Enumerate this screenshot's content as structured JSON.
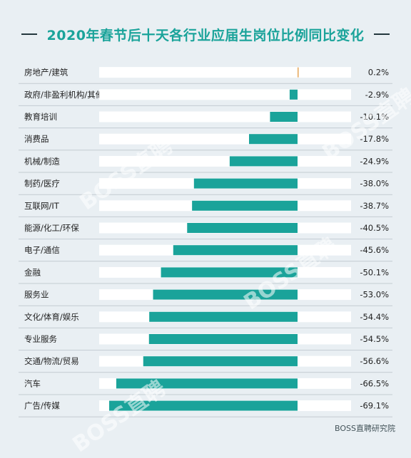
{
  "title": "2020年春节后十天各行业应届生岗位比例同比变化",
  "source": "BOSS直聘研究院",
  "watermark": "BOSS直聘",
  "colors": {
    "background": "#e9eff3",
    "bar": "#1aa39a",
    "bar_positive": "#e6a555",
    "track": "#ffffff",
    "title": "#1aa39a",
    "text": "#222222"
  },
  "chart_data": {
    "type": "bar",
    "orientation": "horizontal",
    "title": "2020年春节后十天各行业应届生岗位比例同比变化",
    "xlim": [
      -70,
      5
    ],
    "categories": [
      "房地产/建筑",
      "政府/非盈利机构/其他",
      "教育培训",
      "消费品",
      "机械/制造",
      "制药/医疗",
      "互联网/IT",
      "能源/化工/环保",
      "电子/通信",
      "金融",
      "服务业",
      "文化/体育/娱乐",
      "专业服务",
      "交通/物流/贸易",
      "汽车",
      "广告/传媒"
    ],
    "values": [
      0.2,
      -2.9,
      -10.1,
      -17.8,
      -24.9,
      -38.0,
      -38.7,
      -40.5,
      -45.6,
      -50.1,
      -53.0,
      -54.4,
      -54.5,
      -56.6,
      -66.5,
      -69.1
    ],
    "value_labels": [
      "0.2%",
      "-2.9%",
      "-10.1%",
      "-17.8%",
      "-24.9%",
      "-38.0%",
      "-38.7%",
      "-40.5%",
      "-45.6%",
      "-50.1%",
      "-53.0%",
      "-54.4%",
      "-54.5%",
      "-56.6%",
      "-66.5%",
      "-69.1%"
    ]
  }
}
